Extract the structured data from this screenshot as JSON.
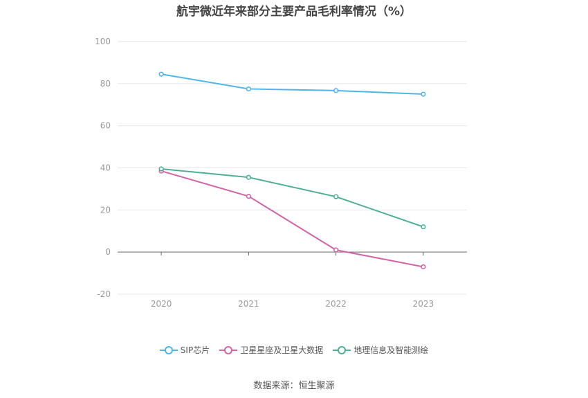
{
  "chart_data": {
    "type": "line",
    "title": "航宇微近年来部分主要产品毛利率情况（%）",
    "categories": [
      "2020",
      "2021",
      "2022",
      "2023"
    ],
    "ylim": [
      -20,
      100
    ],
    "yticks": [
      -20,
      0,
      20,
      40,
      60,
      80,
      100
    ],
    "grid": true,
    "legend_position": "bottom",
    "series": [
      {
        "name": "SIP芯片",
        "color": "#4db6e8",
        "values": [
          84.5,
          77.5,
          76.7,
          75.0
        ]
      },
      {
        "name": "卫星星座及卫星大数据",
        "color": "#d462a6",
        "values": [
          38.5,
          26.5,
          1.0,
          -7.0
        ]
      },
      {
        "name": "地理信息及智能测绘",
        "color": "#4caf94",
        "values": [
          39.5,
          35.5,
          26.3,
          12.0
        ]
      }
    ]
  },
  "source_text": "数据来源：恒生聚源"
}
